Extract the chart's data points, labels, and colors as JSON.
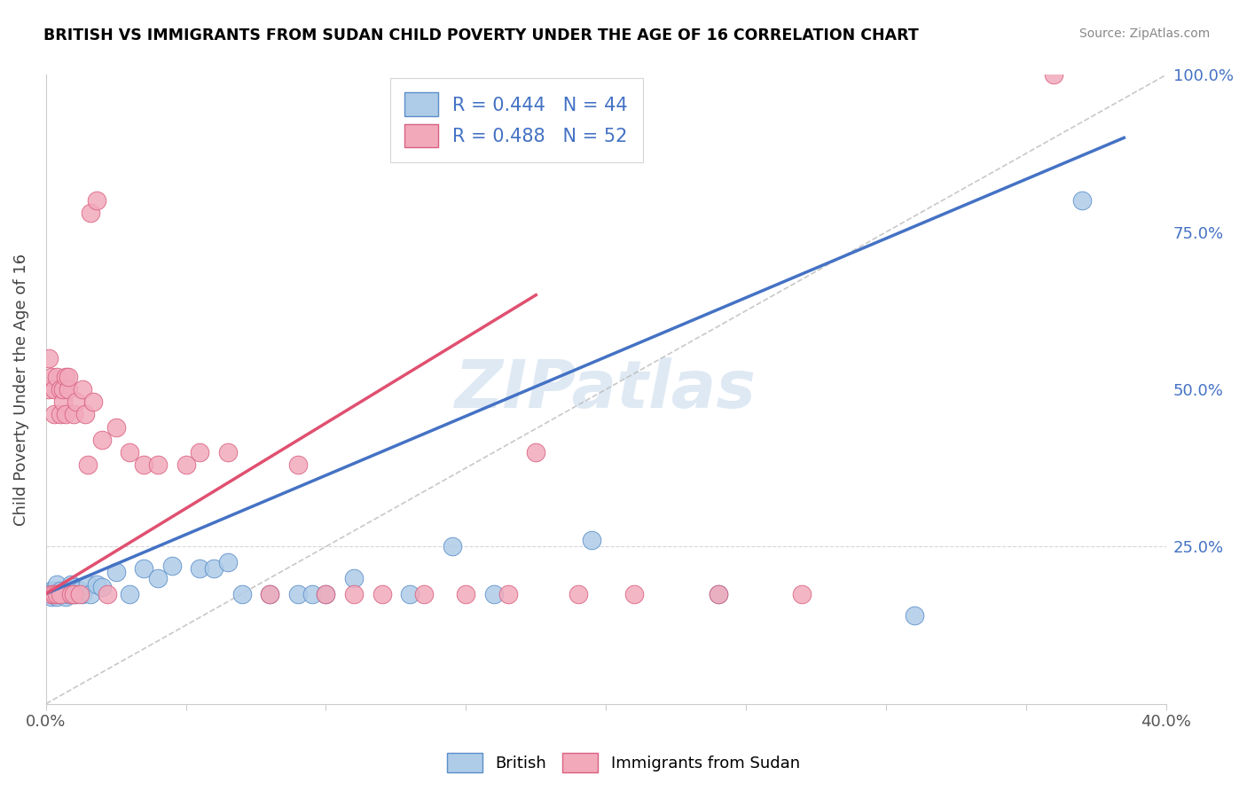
{
  "title": "BRITISH VS IMMIGRANTS FROM SUDAN CHILD POVERTY UNDER THE AGE OF 16 CORRELATION CHART",
  "source": "Source: ZipAtlas.com",
  "ylabel": "Child Poverty Under the Age of 16",
  "xlim": [
    0.0,
    0.4
  ],
  "ylim": [
    0.0,
    1.0
  ],
  "xtick_positions": [
    0.0,
    0.05,
    0.1,
    0.15,
    0.2,
    0.25,
    0.3,
    0.35,
    0.4
  ],
  "xticklabels": [
    "0.0%",
    "",
    "",
    "",
    "",
    "",
    "",
    "",
    "40.0%"
  ],
  "ytick_positions": [
    0.0,
    0.25,
    0.5,
    0.75,
    1.0
  ],
  "yticklabels_right": [
    "",
    "25.0%",
    "50.0%",
    "75.0%",
    "100.0%"
  ],
  "legend_blue_r": "R = 0.444",
  "legend_blue_n": "N = 44",
  "legend_pink_r": "R = 0.488",
  "legend_pink_n": "N = 52",
  "blue_fill": "#AECCE8",
  "pink_fill": "#F2AABB",
  "blue_edge": "#5B8EC9",
  "pink_edge": "#D96080",
  "blue_line_color": "#4472C4",
  "pink_line_color": "#E05070",
  "gray_ref_color": "#BBBBBB",
  "legend_r_color": "#4472C4",
  "watermark": "ZIPatlas",
  "blue_line_x0": 0.0,
  "blue_line_y0": 0.175,
  "blue_line_x1": 0.385,
  "blue_line_y1": 0.9,
  "pink_line_x0": 0.0,
  "pink_line_y0": 0.175,
  "pink_line_x1": 0.175,
  "pink_line_y1": 0.65,
  "british_x": [
    0.001,
    0.002,
    0.002,
    0.003,
    0.003,
    0.004,
    0.004,
    0.005,
    0.005,
    0.006,
    0.007,
    0.007,
    0.008,
    0.009,
    0.01,
    0.01,
    0.011,
    0.012,
    0.013,
    0.015,
    0.016,
    0.018,
    0.02,
    0.025,
    0.03,
    0.035,
    0.04,
    0.045,
    0.055,
    0.06,
    0.065,
    0.07,
    0.08,
    0.09,
    0.095,
    0.1,
    0.11,
    0.13,
    0.145,
    0.16,
    0.195,
    0.24,
    0.31,
    0.37
  ],
  "british_y": [
    0.175,
    0.17,
    0.18,
    0.175,
    0.18,
    0.17,
    0.19,
    0.175,
    0.18,
    0.175,
    0.17,
    0.18,
    0.175,
    0.19,
    0.175,
    0.185,
    0.175,
    0.18,
    0.175,
    0.19,
    0.175,
    0.19,
    0.185,
    0.21,
    0.175,
    0.215,
    0.2,
    0.22,
    0.215,
    0.215,
    0.225,
    0.175,
    0.175,
    0.175,
    0.175,
    0.175,
    0.2,
    0.175,
    0.25,
    0.175,
    0.26,
    0.175,
    0.14,
    0.8
  ],
  "sudan_x": [
    0.001,
    0.001,
    0.002,
    0.002,
    0.003,
    0.003,
    0.003,
    0.004,
    0.004,
    0.005,
    0.005,
    0.005,
    0.006,
    0.006,
    0.007,
    0.007,
    0.008,
    0.008,
    0.009,
    0.01,
    0.01,
    0.011,
    0.012,
    0.013,
    0.014,
    0.015,
    0.016,
    0.017,
    0.018,
    0.02,
    0.022,
    0.025,
    0.03,
    0.035,
    0.04,
    0.05,
    0.055,
    0.065,
    0.08,
    0.09,
    0.1,
    0.11,
    0.12,
    0.135,
    0.15,
    0.165,
    0.175,
    0.19,
    0.21,
    0.24,
    0.27,
    0.36
  ],
  "sudan_y": [
    0.5,
    0.55,
    0.175,
    0.52,
    0.5,
    0.175,
    0.46,
    0.52,
    0.175,
    0.5,
    0.46,
    0.175,
    0.48,
    0.5,
    0.52,
    0.46,
    0.5,
    0.52,
    0.175,
    0.175,
    0.46,
    0.48,
    0.175,
    0.5,
    0.46,
    0.38,
    0.78,
    0.48,
    0.8,
    0.42,
    0.175,
    0.44,
    0.4,
    0.38,
    0.38,
    0.38,
    0.4,
    0.4,
    0.175,
    0.38,
    0.175,
    0.175,
    0.175,
    0.175,
    0.175,
    0.175,
    0.4,
    0.175,
    0.175,
    0.175,
    0.175,
    1.0
  ]
}
